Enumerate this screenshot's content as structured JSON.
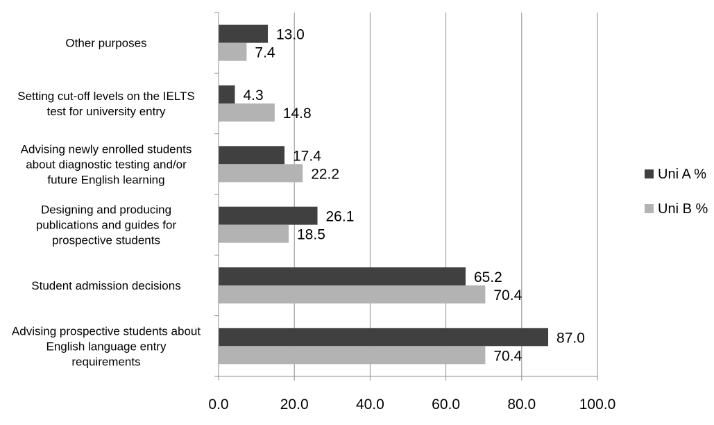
{
  "chart_data": {
    "type": "bar",
    "orientation": "horizontal",
    "categories": [
      [
        "Other purposes"
      ],
      [
        "Setting cut-off levels on the IELTS",
        "test for university entry"
      ],
      [
        "Advising newly enrolled students",
        "about diagnostic testing and/or",
        "future English learning"
      ],
      [
        "Designing and producing",
        "publications and guides for",
        "prospective students"
      ],
      [
        "Student admission decisions"
      ],
      [
        "Advising prospective students about",
        "English language entry",
        "requirements"
      ]
    ],
    "series": [
      {
        "name": "Uni A %",
        "color": "#404040",
        "values": [
          13.0,
          4.3,
          17.4,
          26.1,
          65.2,
          87.0
        ],
        "labels": [
          "13.0",
          "4.3",
          "17.4",
          "26.1",
          "65.2",
          "87.0"
        ]
      },
      {
        "name": "Uni B %",
        "color": "#b3b3b3",
        "values": [
          7.4,
          14.8,
          22.2,
          18.5,
          70.4,
          70.4
        ],
        "labels": [
          "7.4",
          "14.8",
          "22.2",
          "18.5",
          "70.4",
          "70.4"
        ]
      }
    ],
    "xlim": [
      0,
      100
    ],
    "xticks": [
      "0.0",
      "20.0",
      "40.0",
      "60.0",
      "80.0",
      "100.0"
    ],
    "grid": true,
    "legend_position": "right"
  }
}
